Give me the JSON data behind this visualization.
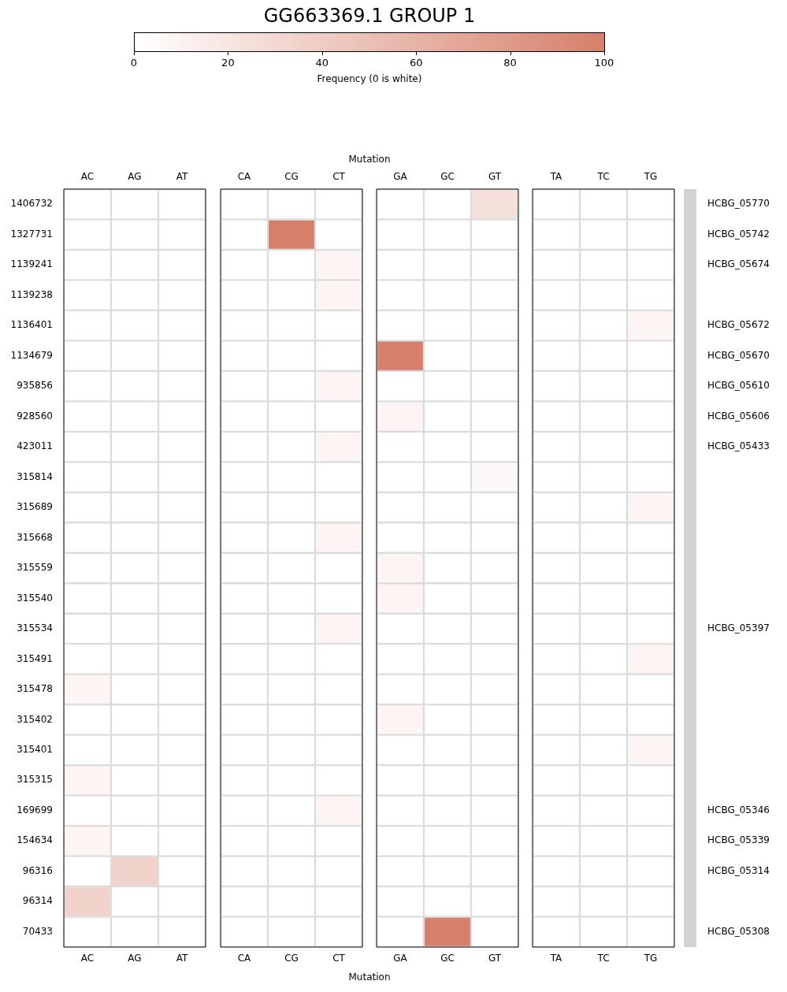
{
  "chart_data": {
    "type": "heatmap",
    "title": "GG663369.1 GROUP 1",
    "xlabel": "Mutation",
    "x2label": "Mutation",
    "clabel": "Frequency (0 is white)",
    "clim": [
      0,
      100
    ],
    "cticks": [
      0,
      20,
      40,
      60,
      80,
      100
    ],
    "color": "#d6806b",
    "categories": [
      "AC",
      "AG",
      "AT",
      "CA",
      "CG",
      "CT",
      "GA",
      "GC",
      "GT",
      "TA",
      "TC",
      "TG"
    ],
    "y_categories": [
      "1406732",
      "1327731",
      "1139241",
      "1139238",
      "1136401",
      "1134679",
      "935856",
      "928560",
      "423011",
      "315814",
      "315689",
      "315668",
      "315559",
      "315540",
      "315534",
      "315491",
      "315478",
      "315402",
      "315401",
      "315315",
      "169699",
      "154634",
      "96316",
      "96314",
      "70433"
    ],
    "y2_categories": [
      "HCBG_05770",
      "HCBG_05742",
      "HCBG_05674",
      null,
      "HCBG_05672",
      "HCBG_05670",
      "HCBG_05610",
      "HCBG_05606",
      "HCBG_05433",
      null,
      null,
      null,
      null,
      null,
      "HCBG_05397",
      null,
      null,
      null,
      null,
      null,
      "HCBG_05346",
      "HCBG_05339",
      "HCBG_05314",
      null,
      "HCBG_05308"
    ],
    "cells": [
      [
        0,
        0,
        0,
        0,
        0,
        0,
        0,
        0,
        25,
        0,
        0,
        0
      ],
      [
        0,
        0,
        0,
        0,
        100,
        0,
        0,
        0,
        0,
        0,
        0,
        0
      ],
      [
        0,
        0,
        0,
        0,
        0,
        8,
        0,
        0,
        0,
        0,
        0,
        0
      ],
      [
        0,
        0,
        0,
        0,
        0,
        8,
        0,
        0,
        0,
        0,
        0,
        0
      ],
      [
        0,
        0,
        0,
        0,
        0,
        0,
        0,
        0,
        0,
        0,
        0,
        8
      ],
      [
        0,
        0,
        0,
        0,
        0,
        0,
        100,
        0,
        0,
        0,
        0,
        0
      ],
      [
        0,
        0,
        0,
        0,
        0,
        8,
        0,
        0,
        0,
        0,
        0,
        0
      ],
      [
        0,
        0,
        0,
        0,
        0,
        0,
        8,
        0,
        0,
        0,
        0,
        0
      ],
      [
        0,
        0,
        0,
        0,
        0,
        8,
        0,
        0,
        0,
        0,
        0,
        0
      ],
      [
        0,
        0,
        0,
        0,
        0,
        0,
        0,
        0,
        5,
        0,
        0,
        0
      ],
      [
        0,
        0,
        0,
        0,
        0,
        0,
        0,
        0,
        0,
        0,
        0,
        8
      ],
      [
        0,
        0,
        0,
        0,
        0,
        8,
        0,
        0,
        0,
        0,
        0,
        0
      ],
      [
        0,
        0,
        0,
        0,
        0,
        0,
        8,
        0,
        0,
        0,
        0,
        0
      ],
      [
        0,
        0,
        0,
        0,
        0,
        0,
        8,
        0,
        0,
        0,
        0,
        0
      ],
      [
        0,
        0,
        0,
        0,
        0,
        8,
        0,
        0,
        0,
        0,
        0,
        0
      ],
      [
        0,
        0,
        0,
        0,
        0,
        0,
        0,
        0,
        0,
        0,
        0,
        8
      ],
      [
        8,
        0,
        0,
        0,
        0,
        0,
        0,
        0,
        0,
        0,
        0,
        0
      ],
      [
        0,
        0,
        0,
        0,
        0,
        0,
        8,
        0,
        0,
        0,
        0,
        0
      ],
      [
        0,
        0,
        0,
        0,
        0,
        0,
        0,
        0,
        0,
        0,
        0,
        8
      ],
      [
        8,
        0,
        0,
        0,
        0,
        0,
        0,
        0,
        0,
        0,
        0,
        0
      ],
      [
        0,
        0,
        0,
        0,
        0,
        8,
        0,
        0,
        0,
        0,
        0,
        0
      ],
      [
        8,
        0,
        0,
        0,
        0,
        0,
        0,
        0,
        0,
        0,
        0,
        0
      ],
      [
        0,
        35,
        0,
        0,
        0,
        0,
        0,
        0,
        0,
        0,
        0,
        0
      ],
      [
        35,
        0,
        0,
        0,
        0,
        0,
        0,
        0,
        0,
        0,
        0,
        0
      ],
      [
        0,
        0,
        0,
        0,
        0,
        0,
        0,
        100,
        0,
        0,
        0,
        0
      ]
    ]
  }
}
